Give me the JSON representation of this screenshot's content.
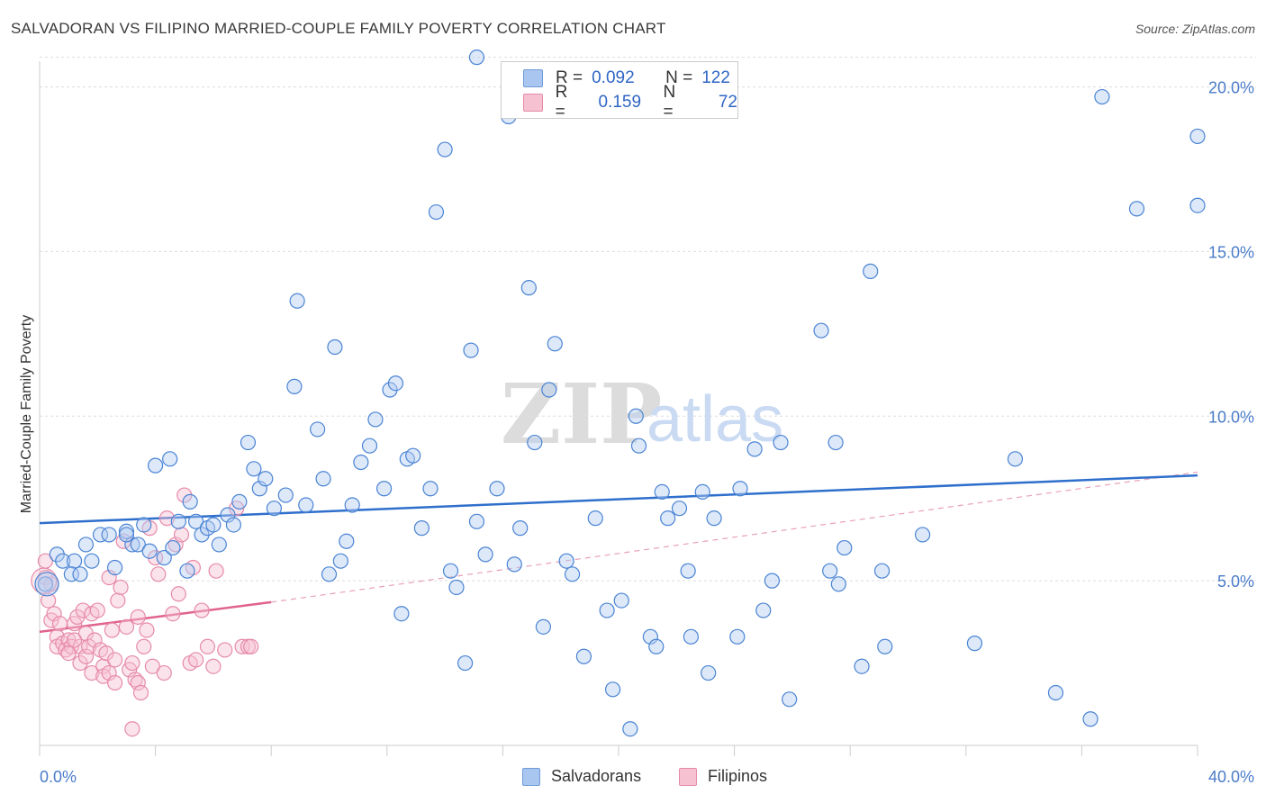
{
  "title": "SALVADORAN VS FILIPINO MARRIED-COUPLE FAMILY POVERTY CORRELATION CHART",
  "source": "Source: ZipAtlas.com",
  "watermark": {
    "zip": "ZIP",
    "atlas": "atlas"
  },
  "legend": {
    "rows": [
      {
        "r_label": "R =",
        "r_value": "0.092",
        "n_label": "N =",
        "n_value": "122",
        "color": "#a9c6f0"
      },
      {
        "r_label": "R =",
        "r_value": "0.159",
        "n_label": "N =",
        "n_value": "72",
        "color": "#f6b6c8"
      }
    ]
  },
  "bottom_legend": [
    {
      "label": "Salvadorans",
      "color": "#a9c6f0"
    },
    {
      "label": "Filipinos",
      "color": "#f6b6c8"
    }
  ],
  "chart_data": {
    "type": "scatter",
    "title": "SALVADORAN VS FILIPINO MARRIED-COUPLE FAMILY POVERTY CORRELATION CHART",
    "xlabel": "",
    "ylabel": "Married-Couple Family Poverty",
    "xlim": [
      0,
      40
    ],
    "ylim": [
      0,
      21
    ],
    "x_tick_labels": {
      "left": "0.0%",
      "right": "40.0%"
    },
    "y_ticks": [
      5,
      10,
      15,
      20
    ],
    "y_tick_labels": [
      "5.0%",
      "10.0%",
      "15.0%",
      "20.0%"
    ],
    "grid": true,
    "series": [
      {
        "name": "Salvadorans",
        "color": "#4a84d4",
        "fill": "#a9c6f0",
        "trend": {
          "x0": 0,
          "y0": 6.75,
          "x1": 40,
          "y1": 8.2,
          "style": "solid"
        },
        "points": [
          [
            0.2,
            4.9
          ],
          [
            0.6,
            5.8
          ],
          [
            0.8,
            5.6
          ],
          [
            1.2,
            5.6
          ],
          [
            1.1,
            5.2
          ],
          [
            1.4,
            5.2
          ],
          [
            1.6,
            6.1
          ],
          [
            1.8,
            5.6
          ],
          [
            2.1,
            6.4
          ],
          [
            2.4,
            6.4
          ],
          [
            2.6,
            5.4
          ],
          [
            3.0,
            6.5
          ],
          [
            3.2,
            6.1
          ],
          [
            3.4,
            6.1
          ],
          [
            3.6,
            6.7
          ],
          [
            3.8,
            5.9
          ],
          [
            4.0,
            8.5
          ],
          [
            4.3,
            5.7
          ],
          [
            4.5,
            8.7
          ],
          [
            4.8,
            6.8
          ],
          [
            5.1,
            5.3
          ],
          [
            5.2,
            7.4
          ],
          [
            5.4,
            6.8
          ],
          [
            5.6,
            6.4
          ],
          [
            5.8,
            6.6
          ],
          [
            6.0,
            6.7
          ],
          [
            6.2,
            6.1
          ],
          [
            6.5,
            7.0
          ],
          [
            6.7,
            6.7
          ],
          [
            6.9,
            7.4
          ],
          [
            7.2,
            9.2
          ],
          [
            7.4,
            8.4
          ],
          [
            7.6,
            7.8
          ],
          [
            7.8,
            8.1
          ],
          [
            8.1,
            7.2
          ],
          [
            8.5,
            7.6
          ],
          [
            8.8,
            10.9
          ],
          [
            8.9,
            13.5
          ],
          [
            9.2,
            7.3
          ],
          [
            9.6,
            9.6
          ],
          [
            9.8,
            8.1
          ],
          [
            10.0,
            5.2
          ],
          [
            10.2,
            12.1
          ],
          [
            10.4,
            5.6
          ],
          [
            10.6,
            6.2
          ],
          [
            10.8,
            7.3
          ],
          [
            11.1,
            8.6
          ],
          [
            11.4,
            9.1
          ],
          [
            11.6,
            9.9
          ],
          [
            11.9,
            7.8
          ],
          [
            12.1,
            10.8
          ],
          [
            12.3,
            11.0
          ],
          [
            12.5,
            4.0
          ],
          [
            12.7,
            8.7
          ],
          [
            12.9,
            8.8
          ],
          [
            13.2,
            6.6
          ],
          [
            13.5,
            7.8
          ],
          [
            13.7,
            16.2
          ],
          [
            14.0,
            18.1
          ],
          [
            14.2,
            5.3
          ],
          [
            14.4,
            4.8
          ],
          [
            14.7,
            2.5
          ],
          [
            14.9,
            12.0
          ],
          [
            15.1,
            6.8
          ],
          [
            15.4,
            5.8
          ],
          [
            15.1,
            20.9
          ],
          [
            15.8,
            7.8
          ],
          [
            16.2,
            19.1
          ],
          [
            16.4,
            5.5
          ],
          [
            16.6,
            6.6
          ],
          [
            16.9,
            13.9
          ],
          [
            17.1,
            9.2
          ],
          [
            17.4,
            3.6
          ],
          [
            17.6,
            10.8
          ],
          [
            17.8,
            12.2
          ],
          [
            18.2,
            5.6
          ],
          [
            18.4,
            5.2
          ],
          [
            18.8,
            2.7
          ],
          [
            19.2,
            6.9
          ],
          [
            19.6,
            4.1
          ],
          [
            19.8,
            1.7
          ],
          [
            20.1,
            4.4
          ],
          [
            20.4,
            0.5
          ],
          [
            20.6,
            10.0
          ],
          [
            20.7,
            9.1
          ],
          [
            21.1,
            3.3
          ],
          [
            21.3,
            3.0
          ],
          [
            21.5,
            7.7
          ],
          [
            21.7,
            6.9
          ],
          [
            22.1,
            7.2
          ],
          [
            22.4,
            5.3
          ],
          [
            22.5,
            3.3
          ],
          [
            22.9,
            7.7
          ],
          [
            23.1,
            2.2
          ],
          [
            23.3,
            6.9
          ],
          [
            24.2,
            7.8
          ],
          [
            24.1,
            3.3
          ],
          [
            24.7,
            9.0
          ],
          [
            25.0,
            4.1
          ],
          [
            25.3,
            5.0
          ],
          [
            25.6,
            9.2
          ],
          [
            25.9,
            1.4
          ],
          [
            27.5,
            9.2
          ],
          [
            27.0,
            12.6
          ],
          [
            27.3,
            5.3
          ],
          [
            27.6,
            4.9
          ],
          [
            27.8,
            6.0
          ],
          [
            28.4,
            2.4
          ],
          [
            28.7,
            14.4
          ],
          [
            29.1,
            5.3
          ],
          [
            29.2,
            3.0
          ],
          [
            30.5,
            6.4
          ],
          [
            32.3,
            3.1
          ],
          [
            33.7,
            8.7
          ],
          [
            35.1,
            1.6
          ],
          [
            36.3,
            0.8
          ],
          [
            36.7,
            19.7
          ],
          [
            40.0,
            18.5
          ],
          [
            37.9,
            16.3
          ],
          [
            40.0,
            16.4
          ],
          [
            3.0,
            6.4
          ],
          [
            4.6,
            6.0
          ]
        ]
      },
      {
        "name": "Filipinos",
        "color": "#e06c94",
        "fill": "#f6b6c8",
        "trend": {
          "x0": 0,
          "y0": 3.45,
          "x1": 8.0,
          "y1": 4.35,
          "style": "solid"
        },
        "trend_extension": {
          "x0": 8.0,
          "y0": 4.35,
          "x1": 40,
          "y1": 8.3,
          "style": "dashed"
        },
        "points": [
          [
            0.2,
            5.6
          ],
          [
            0.2,
            5.1
          ],
          [
            0.3,
            4.4
          ],
          [
            0.4,
            3.8
          ],
          [
            0.5,
            4.0
          ],
          [
            0.6,
            3.3
          ],
          [
            0.6,
            3.0
          ],
          [
            0.7,
            3.7
          ],
          [
            0.8,
            3.1
          ],
          [
            0.9,
            2.9
          ],
          [
            1.0,
            3.2
          ],
          [
            1.1,
            3.0
          ],
          [
            1.2,
            3.7
          ],
          [
            1.3,
            3.9
          ],
          [
            1.4,
            2.5
          ],
          [
            1.4,
            3.0
          ],
          [
            1.5,
            4.1
          ],
          [
            1.6,
            2.7
          ],
          [
            1.6,
            3.4
          ],
          [
            1.7,
            3.0
          ],
          [
            1.8,
            4.0
          ],
          [
            1.8,
            2.2
          ],
          [
            1.9,
            3.2
          ],
          [
            2.0,
            4.1
          ],
          [
            2.1,
            2.9
          ],
          [
            2.2,
            2.4
          ],
          [
            2.2,
            2.1
          ],
          [
            2.3,
            2.8
          ],
          [
            2.4,
            2.2
          ],
          [
            2.4,
            5.1
          ],
          [
            2.5,
            3.5
          ],
          [
            2.6,
            2.6
          ],
          [
            2.7,
            4.4
          ],
          [
            2.8,
            4.8
          ],
          [
            2.9,
            6.2
          ],
          [
            3.0,
            3.6
          ],
          [
            3.1,
            2.3
          ],
          [
            3.2,
            2.5
          ],
          [
            3.3,
            2.0
          ],
          [
            3.4,
            1.9
          ],
          [
            3.4,
            3.9
          ],
          [
            3.5,
            1.6
          ],
          [
            3.6,
            3.0
          ],
          [
            3.7,
            3.5
          ],
          [
            3.8,
            6.6
          ],
          [
            3.9,
            2.4
          ],
          [
            4.0,
            5.7
          ],
          [
            4.1,
            5.2
          ],
          [
            4.3,
            2.2
          ],
          [
            4.4,
            6.9
          ],
          [
            4.6,
            4.0
          ],
          [
            4.7,
            6.1
          ],
          [
            4.8,
            4.6
          ],
          [
            4.9,
            6.4
          ],
          [
            5.0,
            7.6
          ],
          [
            5.2,
            2.5
          ],
          [
            5.3,
            5.4
          ],
          [
            5.4,
            2.6
          ],
          [
            5.6,
            4.1
          ],
          [
            5.8,
            3.0
          ],
          [
            6.0,
            2.4
          ],
          [
            6.1,
            5.3
          ],
          [
            6.4,
            2.9
          ],
          [
            6.8,
            7.2
          ],
          [
            7.0,
            3.0
          ],
          [
            7.2,
            3.0
          ],
          [
            7.3,
            3.0
          ],
          [
            3.2,
            0.5
          ],
          [
            1.2,
            3.2
          ],
          [
            0.4,
            4.9
          ],
          [
            2.6,
            1.9
          ],
          [
            1.0,
            2.8
          ]
        ]
      }
    ]
  }
}
